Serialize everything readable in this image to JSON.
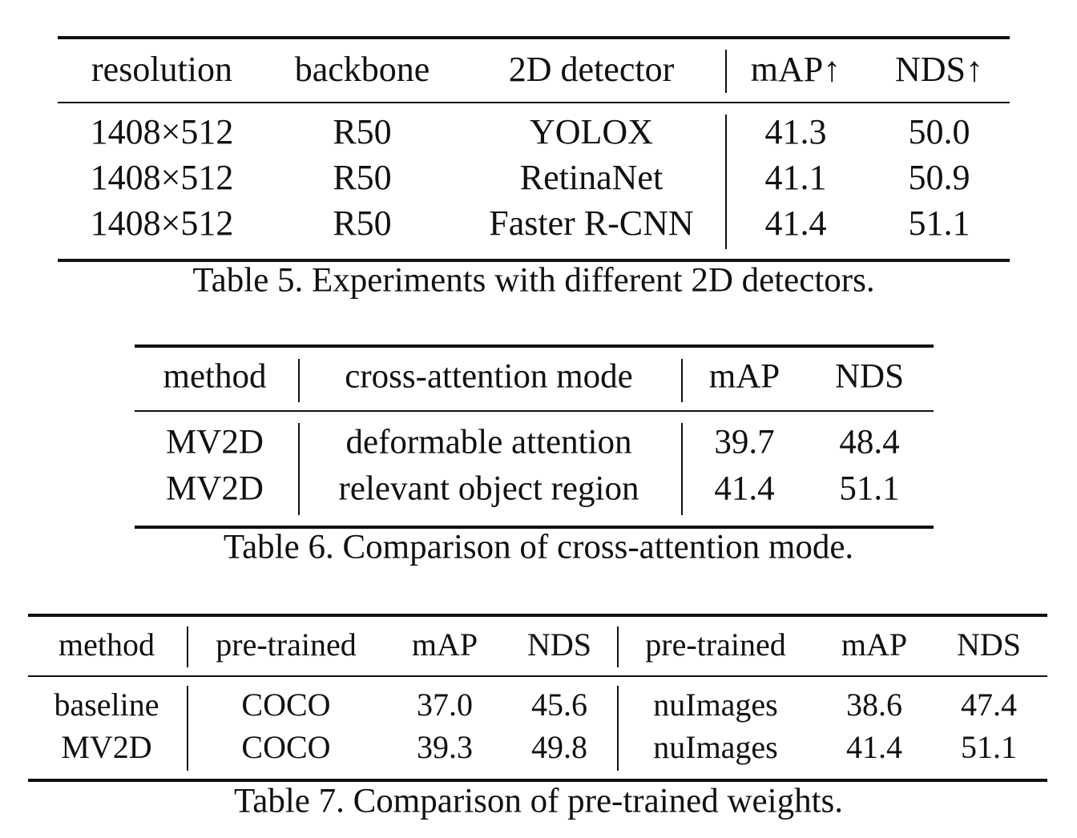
{
  "tables": [
    {
      "caption": "Table 5.  Experiments with different 2D detectors.",
      "headers": [
        "resolution",
        "backbone",
        "2D detector",
        "mAP↑",
        "NDS↑"
      ],
      "rows": [
        [
          "1408×512",
          "R50",
          "YOLOX",
          "41.3",
          "50.0"
        ],
        [
          "1408×512",
          "R50",
          "RetinaNet",
          "41.1",
          "50.9"
        ],
        [
          "1408×512",
          "R50",
          "Faster R-CNN",
          "41.4",
          "51.1"
        ]
      ]
    },
    {
      "caption": "Table 6. Comparison of cross-attention mode.",
      "headers": [
        "method",
        "cross-attention mode",
        "mAP",
        "NDS"
      ],
      "rows": [
        [
          "MV2D",
          "deformable attention",
          "39.7",
          "48.4"
        ],
        [
          "MV2D",
          "relevant object region",
          "41.4",
          "51.1"
        ]
      ]
    },
    {
      "caption": "Table 7. Comparison of pre-trained weights.",
      "headers": [
        "method",
        "pre-trained",
        "mAP",
        "NDS",
        "pre-trained",
        "mAP",
        "NDS"
      ],
      "rows": [
        [
          "baseline",
          "COCO",
          "37.0",
          "45.6",
          "nuImages",
          "38.6",
          "47.4"
        ],
        [
          "MV2D",
          "COCO",
          "39.3",
          "49.8",
          "nuImages",
          "41.4",
          "51.1"
        ]
      ]
    }
  ]
}
